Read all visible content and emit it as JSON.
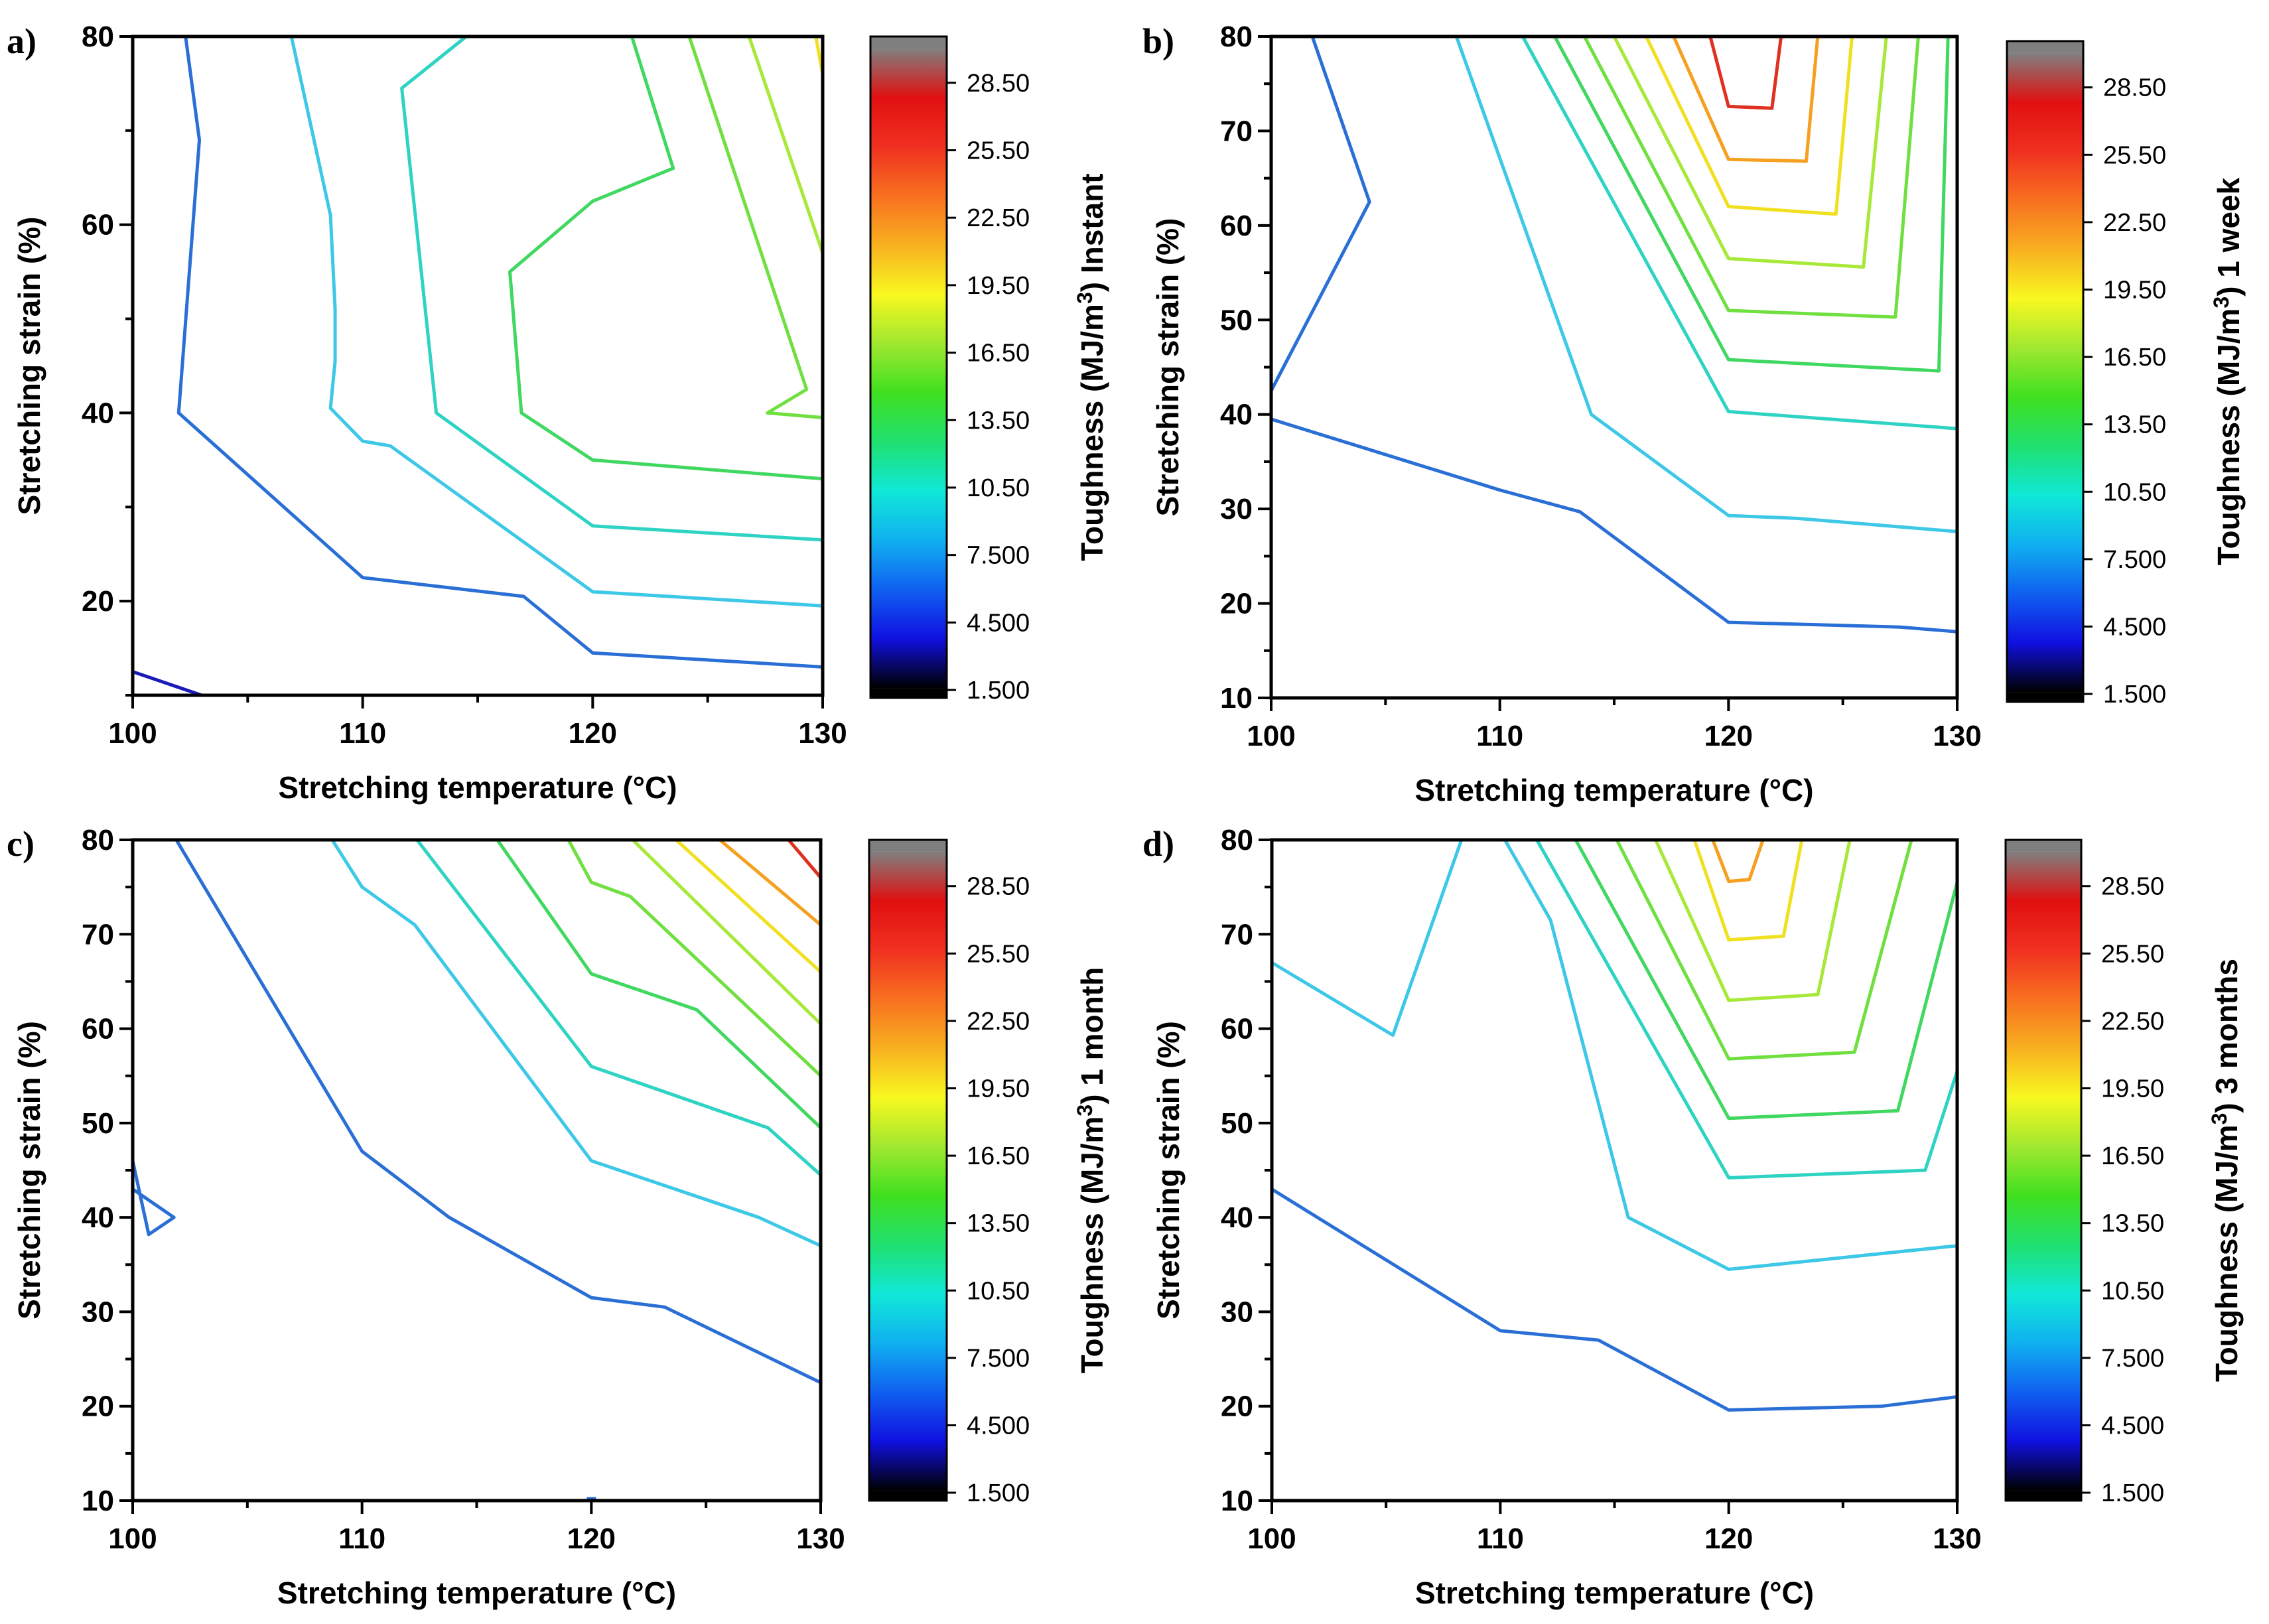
{
  "figure": {
    "background": "#ffffff"
  },
  "chart_data": [
    {
      "panel": "a)",
      "type": "contour",
      "xlabel": "Stretching temperature (°C)",
      "ylabel": "Stretching strain (%)",
      "xlim": [
        100,
        130
      ],
      "ylim": [
        10,
        80
      ],
      "x_ticks": [
        100,
        110,
        120,
        130
      ],
      "y_ticks": [
        20,
        40,
        60,
        80
      ],
      "colorbar": {
        "title": "Toughness (MJ/m3)",
        "suffix": "Instant",
        "ticks": [
          "1.500",
          "4.500",
          "7.500",
          "10.50",
          "13.50",
          "16.50",
          "19.50",
          "22.50",
          "25.50",
          "28.50"
        ]
      },
      "contours": [
        {
          "level": 1.5,
          "color": "#1a1ab8",
          "points": [
            [
              100,
              12.5
            ],
            [
              103,
              10
            ]
          ]
        },
        {
          "level": 4.5,
          "color": "#2a6fd6",
          "points": [
            [
              102.3,
              80
            ],
            [
              102.9,
              69
            ],
            [
              102,
              40
            ],
            [
              110,
              22.5
            ],
            [
              117,
              20.5
            ],
            [
              120,
              14.5
            ],
            [
              130,
              13
            ]
          ]
        },
        {
          "level": 7.5,
          "color": "#3cc8e6",
          "points": [
            [
              106.9,
              80
            ],
            [
              108.6,
              61
            ],
            [
              108.8,
              51
            ],
            [
              108.8,
              45.5
            ],
            [
              108.6,
              40.5
            ],
            [
              110,
              37
            ],
            [
              111.2,
              36.5
            ],
            [
              120,
              21
            ],
            [
              130,
              19.5
            ]
          ]
        },
        {
          "level": 10.5,
          "color": "#2ed3c3",
          "points": [
            [
              114.5,
              80
            ],
            [
              111.7,
              74.5
            ],
            [
              113.2,
              40
            ],
            [
              120,
              28
            ],
            [
              130,
              26.5
            ]
          ]
        },
        {
          "level": 13.5,
          "color": "#40d860",
          "points": [
            [
              121.7,
              80
            ],
            [
              123.5,
              66
            ],
            [
              120,
              62.5
            ],
            [
              116.4,
              55
            ],
            [
              116.9,
              40
            ],
            [
              120,
              35
            ],
            [
              130,
              33
            ]
          ]
        },
        {
          "level": 16.5,
          "color": "#70e040",
          "points": [
            [
              124.2,
              80
            ],
            [
              129.3,
              42.5
            ],
            [
              127.6,
              40
            ],
            [
              130,
              39.5
            ]
          ]
        },
        {
          "level": 19.5,
          "color": "#a8e838",
          "points": [
            [
              126.8,
              80
            ],
            [
              130,
              57
            ]
          ]
        },
        {
          "level": 22.5,
          "color": "#f0e020",
          "points": [
            [
              129.7,
              80
            ],
            [
              130,
              76
            ]
          ]
        }
      ]
    },
    {
      "panel": "b)",
      "type": "contour",
      "xlabel": "Stretching temperature (°C)",
      "ylabel": "Stretching strain (%)",
      "xlim": [
        100,
        130
      ],
      "ylim": [
        10,
        80
      ],
      "x_ticks": [
        100,
        110,
        120,
        130
      ],
      "y_ticks": [
        10,
        20,
        30,
        40,
        50,
        60,
        70,
        80
      ],
      "colorbar": {
        "title": "Toughness (MJ/m3)",
        "suffix": "1 week",
        "ticks": [
          "1.500",
          "4.500",
          "7.500",
          "10.50",
          "13.50",
          "16.50",
          "19.50",
          "22.50",
          "25.50",
          "28.50"
        ]
      },
      "contours": [
        {
          "level": 4.5,
          "color": "#2a6fd6",
          "points": [
            [
              101.8,
              80
            ],
            [
              104.3,
              62.5
            ],
            [
              100,
              42.5
            ]
          ]
        },
        {
          "level": 4.5,
          "color": "#2a6fd6",
          "points": [
            [
              100,
              39.5
            ],
            [
              110,
              32
            ],
            [
              113.5,
              29.7
            ],
            [
              120,
              18
            ],
            [
              127.5,
              17.5
            ],
            [
              130,
              17
            ]
          ]
        },
        {
          "level": 7.5,
          "color": "#3cc8e6",
          "points": [
            [
              108.1,
              80
            ],
            [
              114,
              40
            ],
            [
              120,
              29.3
            ],
            [
              123,
              29
            ],
            [
              130,
              27.6
            ]
          ]
        },
        {
          "level": 10.5,
          "color": "#2ed3c3",
          "points": [
            [
              111,
              80
            ],
            [
              120,
              40.3
            ],
            [
              130,
              38.5
            ]
          ]
        },
        {
          "level": 13.5,
          "color": "#40d860",
          "points": [
            [
              112.4,
              80
            ],
            [
              120,
              45.8
            ],
            [
              129.2,
              44.6
            ],
            [
              129.6,
              80
            ]
          ]
        },
        {
          "level": 16.5,
          "color": "#70e040",
          "points": [
            [
              113.7,
              80
            ],
            [
              120,
              51
            ],
            [
              127.3,
              50.3
            ],
            [
              128.3,
              80
            ]
          ]
        },
        {
          "level": 19.5,
          "color": "#a8e838",
          "points": [
            [
              115,
              80
            ],
            [
              120,
              56.5
            ],
            [
              125.9,
              55.6
            ],
            [
              126.9,
              80
            ]
          ]
        },
        {
          "level": 22.5,
          "color": "#f0e020",
          "points": [
            [
              116.4,
              80
            ],
            [
              120,
              62
            ],
            [
              124.7,
              61.2
            ],
            [
              125.4,
              80
            ]
          ]
        },
        {
          "level": 25.5,
          "color": "#f5a020",
          "points": [
            [
              117.6,
              80
            ],
            [
              120,
              67
            ],
            [
              123.4,
              66.8
            ],
            [
              123.9,
              80
            ]
          ]
        },
        {
          "level": 28.5,
          "color": "#e03020",
          "points": [
            [
              119.2,
              80
            ],
            [
              120,
              72.6
            ],
            [
              121.9,
              72.4
            ],
            [
              122.3,
              80
            ]
          ]
        }
      ]
    },
    {
      "panel": "c)",
      "type": "contour",
      "xlabel": "Stretching temperature (°C)",
      "ylabel": "Stretching strain (%)",
      "xlim": [
        100,
        130
      ],
      "ylim": [
        10,
        80
      ],
      "x_ticks": [
        100,
        110,
        120,
        130
      ],
      "y_ticks": [
        10,
        20,
        30,
        40,
        50,
        60,
        70,
        80
      ],
      "colorbar": {
        "title": "Toughness (MJ/m3)",
        "suffix": "1 month",
        "ticks": [
          "1.500",
          "4.500",
          "7.500",
          "10.50",
          "13.50",
          "16.50",
          "19.50",
          "22.50",
          "25.50",
          "28.50"
        ]
      },
      "contours": [
        {
          "level": 4.5,
          "color": "#2a6fd6",
          "points": [
            [
              100,
              46
            ],
            [
              100.7,
              38.2
            ],
            [
              101.8,
              40
            ],
            [
              100,
              43
            ]
          ]
        },
        {
          "level": 4.5,
          "color": "#2a6fd6",
          "points": [
            [
              101.9,
              80
            ],
            [
              110,
              47
            ],
            [
              113.8,
              40
            ],
            [
              120,
              31.5
            ],
            [
              123.2,
              30.5
            ],
            [
              130,
              22.5
            ]
          ]
        },
        {
          "level": 4.5,
          "color": "#2a6fd6",
          "points": [
            [
              119.8,
              10.2
            ],
            [
              120.2,
              10.2
            ]
          ]
        },
        {
          "level": 7.5,
          "color": "#3cc8e6",
          "points": [
            [
              108.7,
              80
            ],
            [
              110,
              75
            ],
            [
              112.3,
              71
            ],
            [
              120,
              46
            ],
            [
              127.3,
              40
            ],
            [
              130,
              37
            ]
          ]
        },
        {
          "level": 10.5,
          "color": "#2ed3c3",
          "points": [
            [
              112.4,
              80
            ],
            [
              120,
              56
            ],
            [
              127.7,
              49.5
            ],
            [
              130,
              44.5
            ]
          ]
        },
        {
          "level": 13.5,
          "color": "#40d860",
          "points": [
            [
              115.9,
              80
            ],
            [
              120,
              65.8
            ],
            [
              124.6,
              62
            ],
            [
              130,
              49.5
            ]
          ]
        },
        {
          "level": 16.5,
          "color": "#70e040",
          "points": [
            [
              119,
              80
            ],
            [
              120,
              75.5
            ],
            [
              121.7,
              74
            ],
            [
              130,
              55
            ]
          ]
        },
        {
          "level": 19.5,
          "color": "#a8e838",
          "points": [
            [
              121.8,
              80
            ],
            [
              130,
              60.5
            ]
          ]
        },
        {
          "level": 22.5,
          "color": "#f0e020",
          "points": [
            [
              123.7,
              80
            ],
            [
              130,
              66
            ]
          ]
        },
        {
          "level": 25.5,
          "color": "#f5a020",
          "points": [
            [
              125.6,
              80
            ],
            [
              130,
              71
            ]
          ]
        },
        {
          "level": 28.5,
          "color": "#e03020",
          "points": [
            [
              128.6,
              80
            ],
            [
              130,
              76
            ]
          ]
        }
      ]
    },
    {
      "panel": "d)",
      "type": "contour",
      "xlabel": "Stretching temperature (°C)",
      "ylabel": "Stretching strain (%)",
      "xlim": [
        100,
        130
      ],
      "ylim": [
        10,
        80
      ],
      "x_ticks": [
        100,
        110,
        120,
        130
      ],
      "y_ticks": [
        10,
        20,
        30,
        40,
        50,
        60,
        70,
        80
      ],
      "colorbar": {
        "title": "Toughness (MJ/m3)",
        "suffix": "3 months",
        "ticks": [
          "1.500",
          "4.500",
          "7.500",
          "10.50",
          "13.50",
          "16.50",
          "19.50",
          "22.50",
          "25.50",
          "28.50"
        ]
      },
      "contours": [
        {
          "level": 4.5,
          "color": "#2a6fd6",
          "points": [
            [
              100,
              43
            ],
            [
              110,
              28
            ],
            [
              114.3,
              27
            ],
            [
              120,
              19.6
            ],
            [
              126.7,
              20
            ],
            [
              130,
              21
            ]
          ]
        },
        {
          "level": 7.5,
          "color": "#3cc8e6",
          "points": [
            [
              100,
              67
            ],
            [
              105.3,
              59.3
            ],
            [
              108.3,
              80
            ]
          ]
        },
        {
          "level": 7.5,
          "color": "#3cc8e6",
          "points": [
            [
              110.2,
              80
            ],
            [
              112.2,
              71.5
            ],
            [
              115.6,
              40
            ],
            [
              120,
              34.5
            ],
            [
              130,
              37
            ]
          ]
        },
        {
          "level": 10.5,
          "color": "#2ed3c3",
          "points": [
            [
              111.6,
              80
            ],
            [
              120,
              44.2
            ],
            [
              128.6,
              45
            ],
            [
              130,
              55.5
            ]
          ]
        },
        {
          "level": 13.5,
          "color": "#40d860",
          "points": [
            [
              113.3,
              80
            ],
            [
              120,
              50.5
            ],
            [
              127.4,
              51.3
            ],
            [
              130,
              75.5
            ]
          ]
        },
        {
          "level": 16.5,
          "color": "#70e040",
          "points": [
            [
              115.1,
              80
            ],
            [
              120,
              56.8
            ],
            [
              125.5,
              57.5
            ],
            [
              128,
              80
            ]
          ]
        },
        {
          "level": 19.5,
          "color": "#a8e838",
          "points": [
            [
              116.8,
              80
            ],
            [
              120,
              63
            ],
            [
              123.9,
              63.6
            ],
            [
              125.3,
              80
            ]
          ]
        },
        {
          "level": 22.5,
          "color": "#f0e020",
          "points": [
            [
              118.5,
              80
            ],
            [
              120,
              69.4
            ],
            [
              122.4,
              69.8
            ],
            [
              123.2,
              80
            ]
          ]
        },
        {
          "level": 25.5,
          "color": "#f5a020",
          "points": [
            [
              119.3,
              80
            ],
            [
              120,
              75.6
            ],
            [
              120.9,
              75.8
            ],
            [
              121.5,
              80
            ]
          ]
        }
      ]
    }
  ],
  "colorbar_stops": [
    "#000000",
    "#1010e0",
    "#1060f0",
    "#10b0f0",
    "#10e8d8",
    "#20e070",
    "#40e020",
    "#a0e830",
    "#f8f820",
    "#f8b020",
    "#f87020",
    "#f03020",
    "#e01010",
    "#808080"
  ]
}
